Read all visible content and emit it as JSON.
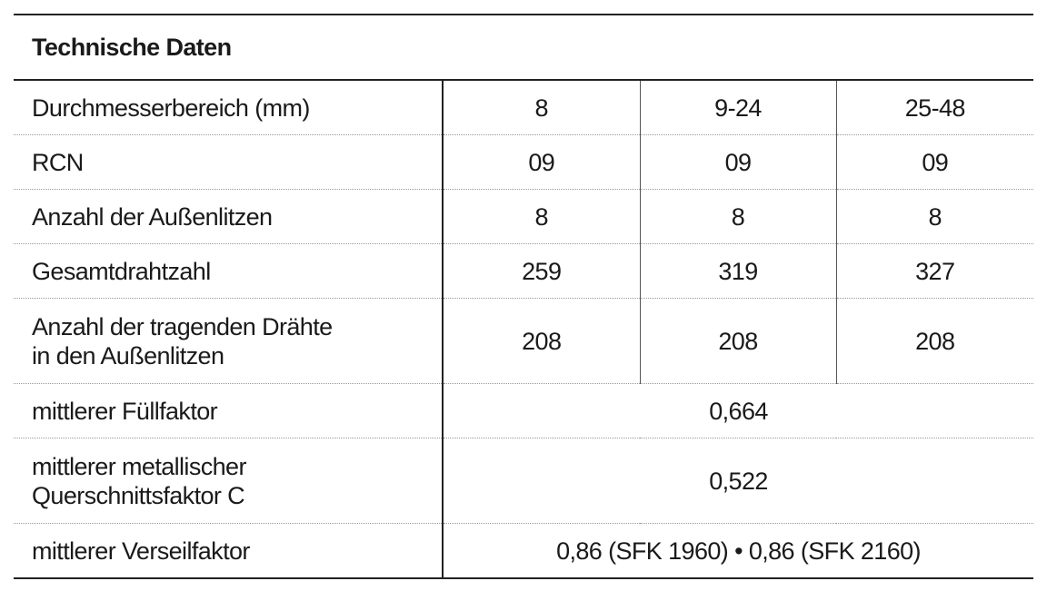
{
  "header": {
    "title": "Technische Daten"
  },
  "table": {
    "rows": [
      {
        "label": [
          "Durchmesserbereich (mm)"
        ],
        "values": [
          8,
          "9-24",
          "25-48"
        ]
      },
      {
        "label": [
          "RCN"
        ],
        "values": [
          "09",
          "09",
          "09"
        ]
      },
      {
        "label": [
          "Anzahl der Außenlitzen"
        ],
        "values": [
          8,
          8,
          8
        ]
      },
      {
        "label": [
          "Gesamtdrahtzahl"
        ],
        "values": [
          259,
          319,
          327
        ]
      },
      {
        "label": [
          "Anzahl der tragenden Drähte",
          "in den Außenlitzen"
        ],
        "values": [
          208,
          208,
          208
        ]
      },
      {
        "label": [
          "mittlerer Füllfaktor"
        ],
        "values": [
          "0,664"
        ]
      },
      {
        "label": [
          "mittlerer metallischer",
          "Querschnittsfaktor C"
        ],
        "values": [
          "0,522"
        ]
      },
      {
        "label": [
          "mittlerer Verseilfaktor"
        ],
        "values": [
          "0,86 (SFK 1960) • 0,86 (SFK 2160)"
        ]
      }
    ]
  }
}
